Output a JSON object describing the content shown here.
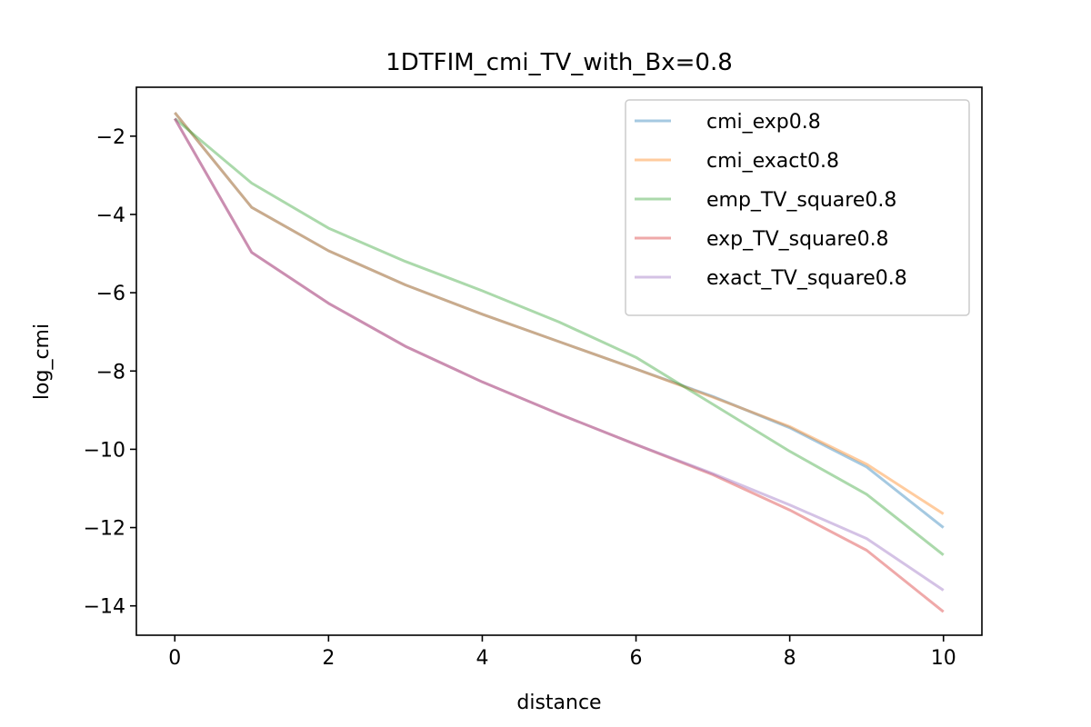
{
  "chart_data": {
    "type": "line",
    "title": "1DTFIM_cmi_TV_with_Bx=0.8",
    "xlabel": "distance",
    "ylabel": "log_cmi",
    "xlim": [
      -0.5,
      10.5
    ],
    "ylim": [
      -14.75,
      -0.75
    ],
    "xticks": [
      0,
      2,
      4,
      6,
      8,
      10
    ],
    "yticks": [
      -2,
      -4,
      -6,
      -8,
      -10,
      -12,
      -14
    ],
    "xtick_labels": [
      "0",
      "2",
      "4",
      "6",
      "8",
      "10"
    ],
    "ytick_labels": [
      "−2",
      "−4",
      "−6",
      "−8",
      "−10",
      "−12",
      "−14"
    ],
    "grid": false,
    "legend_position": "top-right",
    "x": [
      0,
      1,
      2,
      3,
      4,
      5,
      6,
      7,
      8,
      9,
      10
    ],
    "series": [
      {
        "name": "cmi_exp0.8",
        "color": "#1f77b4",
        "values": [
          -1.4,
          -3.82,
          -4.93,
          -5.8,
          -6.55,
          -7.25,
          -7.95,
          -8.65,
          -9.45,
          -10.45,
          -12.0
        ]
      },
      {
        "name": "cmi_exact0.8",
        "color": "#ff7f0e",
        "values": [
          -1.4,
          -3.82,
          -4.93,
          -5.8,
          -6.55,
          -7.25,
          -7.95,
          -8.67,
          -9.42,
          -10.38,
          -11.65
        ]
      },
      {
        "name": "emp_TV_square0.8",
        "color": "#2ca02c",
        "values": [
          -1.55,
          -3.2,
          -4.35,
          -5.2,
          -5.95,
          -6.75,
          -7.65,
          -8.85,
          -10.05,
          -11.15,
          -12.7
        ]
      },
      {
        "name": "exp_TV_square0.8",
        "color": "#d62728",
        "values": [
          -1.55,
          -4.97,
          -6.27,
          -7.37,
          -8.28,
          -9.1,
          -9.88,
          -10.65,
          -11.55,
          -12.58,
          -14.15
        ]
      },
      {
        "name": "exact_TV_square0.8",
        "color": "#9467bd",
        "values": [
          -1.55,
          -4.97,
          -6.27,
          -7.37,
          -8.28,
          -9.1,
          -9.88,
          -10.62,
          -11.42,
          -12.28,
          -13.6
        ]
      }
    ]
  }
}
